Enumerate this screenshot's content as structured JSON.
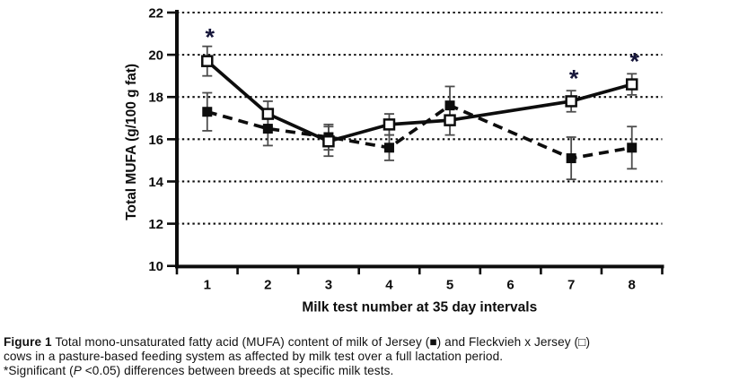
{
  "figure": {
    "background": "#ffffff",
    "ink_color": "#0d0d0d",
    "asterisk_color": "#16163a"
  },
  "chart_data": {
    "type": "line",
    "title": "",
    "xlabel": "Milk test number at 35 day intervals",
    "ylabel": "Total MUFA (g/100 g fat)",
    "categories": [
      "1",
      "2",
      "3",
      "4",
      "5",
      "6",
      "7",
      "8"
    ],
    "xlim": [
      0.5,
      8.5
    ],
    "ylim": [
      10,
      22
    ],
    "ytick_step": 2,
    "ytick_labels": [
      "22",
      "20",
      "18",
      "16",
      "14",
      "12",
      "10"
    ],
    "grid": "horizontal dotted lines at each y tick, on",
    "legend_position": "none (symbols explained in caption)",
    "series": [
      {
        "name": "Jersey",
        "marker": "filled-square",
        "line": "dashed",
        "x": [
          1,
          2,
          3,
          4,
          5,
          7,
          8
        ],
        "values": [
          17.3,
          16.5,
          16.1,
          15.6,
          17.6,
          15.1,
          15.6
        ],
        "error": [
          0.9,
          0.8,
          0.6,
          0.6,
          0.9,
          1.0,
          1.0
        ]
      },
      {
        "name": "Fleckvieh x Jersey",
        "marker": "open-square",
        "line": "solid",
        "x": [
          1,
          2,
          3,
          4,
          5,
          7,
          8
        ],
        "values": [
          19.7,
          17.2,
          15.9,
          16.7,
          16.9,
          17.8,
          18.6
        ],
        "error": [
          0.7,
          0.6,
          0.7,
          0.5,
          0.7,
          0.5,
          0.5
        ]
      }
    ],
    "annotations": [
      {
        "symbol": "*",
        "x": 1,
        "y": 21.05
      },
      {
        "symbol": "*",
        "x": 7,
        "y": 19.1
      },
      {
        "symbol": "*",
        "x": 8,
        "y": 19.9
      }
    ]
  },
  "caption": {
    "line1_bold": "Figure 1",
    "line1_rest": " Total mono-unsaturated fatty acid (MUFA) content of milk of Jersey (■) and Fleckvieh x Jersey (□)",
    "line2": "cows in a pasture-based feeding system as affected by milk test over a full lactation period.",
    "line3_pre": "*Significant (",
    "line3_italic": "P",
    "line3_post": " <0.05) differences between breeds at specific milk tests."
  }
}
